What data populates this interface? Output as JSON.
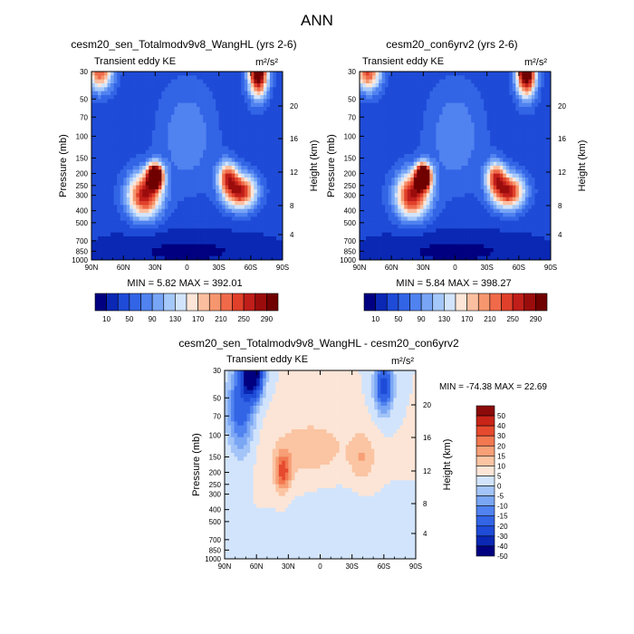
{
  "figure_title": "ANN",
  "chart_data": [
    {
      "type": "heatmap",
      "title": "cesm20_sen_Totalmodv9v8_WangHL (yrs 2-6)",
      "subtitle": "Transient eddy KE",
      "units": "m²/s²",
      "xlabel": "",
      "ylabel": "Pressure (mb)",
      "ylabel_right": "Height (km)",
      "x_ticks": [
        "90N",
        "60N",
        "30N",
        "0",
        "30S",
        "60S",
        "90S"
      ],
      "y_ticks": [
        "30",
        "50",
        "70",
        "100",
        "150",
        "200",
        "250",
        "300",
        "400",
        "500",
        "700",
        "850",
        "1000"
      ],
      "y_ticks_right": [
        "4",
        "8",
        "12",
        "16",
        "20"
      ],
      "ylim": [
        1000,
        30
      ],
      "stats": "MIN =  5.82  MAX = 392.01",
      "colorbar_labels": [
        "10",
        "50",
        "90",
        "130",
        "170",
        "210",
        "250",
        "290"
      ],
      "features": [
        {
          "lat": 30,
          "pressure": 200,
          "value": 392
        },
        {
          "lat": -50,
          "pressure": 270,
          "value": 300
        },
        {
          "lat": -65,
          "pressure": 30,
          "value": 290
        },
        {
          "lat": 80,
          "pressure": 30,
          "value": 180
        }
      ]
    },
    {
      "type": "heatmap",
      "title": "cesm20_con6yrv2 (yrs 2-6)",
      "subtitle": "Transient eddy KE",
      "units": "m²/s²",
      "xlabel": "",
      "ylabel": "Pressure (mb)",
      "ylabel_right": "Height (km)",
      "x_ticks": [
        "90N",
        "60N",
        "30N",
        "0",
        "30S",
        "60S",
        "90S"
      ],
      "y_ticks": [
        "30",
        "50",
        "70",
        "100",
        "150",
        "200",
        "250",
        "300",
        "400",
        "500",
        "700",
        "850",
        "1000"
      ],
      "y_ticks_right": [
        "4",
        "8",
        "12",
        "16",
        "20"
      ],
      "ylim": [
        1000,
        30
      ],
      "stats": "MIN =  5.84  MAX = 398.27",
      "colorbar_labels": [
        "10",
        "50",
        "90",
        "130",
        "170",
        "210",
        "250",
        "290"
      ],
      "features": [
        {
          "lat": 30,
          "pressure": 200,
          "value": 398
        },
        {
          "lat": -50,
          "pressure": 270,
          "value": 300
        },
        {
          "lat": -65,
          "pressure": 30,
          "value": 300
        },
        {
          "lat": 80,
          "pressure": 30,
          "value": 190
        }
      ]
    },
    {
      "type": "heatmap",
      "title": "cesm20_sen_Totalmodv9v8_WangHL - cesm20_con6yrv2",
      "subtitle": "Transient eddy KE",
      "units": "m²/s²",
      "xlabel": "",
      "ylabel": "Pressure (mb)",
      "ylabel_right": "Height (km)",
      "x_ticks": [
        "90N",
        "60N",
        "30N",
        "0",
        "30S",
        "60S",
        "90S"
      ],
      "y_ticks": [
        "30",
        "50",
        "70",
        "100",
        "150",
        "200",
        "250",
        "300",
        "400",
        "500",
        "700",
        "850",
        "1000"
      ],
      "y_ticks_right": [
        "4",
        "8",
        "12",
        "16",
        "20"
      ],
      "ylim": [
        1000,
        30
      ],
      "stats": "MIN = -74.38  MAX =  22.69",
      "colorbar_labels": [
        "50",
        "40",
        "30",
        "20",
        "15",
        "10",
        "5",
        "0",
        "-5",
        "-10",
        "-15",
        "-20",
        "-30",
        "-40",
        "-50"
      ],
      "features": [
        {
          "lat": 65,
          "pressure": 30,
          "value": -74
        },
        {
          "lat": 35,
          "pressure": 200,
          "value": 22
        },
        {
          "lat": -60,
          "pressure": 35,
          "value": -40
        }
      ]
    }
  ],
  "colors": {
    "abs_scale": [
      "#000080",
      "#0a28b4",
      "#1e4bd7",
      "#3264e6",
      "#5082f0",
      "#78a5f5",
      "#a5c8fa",
      "#d2e4fc",
      "#fde6d8",
      "#fbbfa0",
      "#f5966e",
      "#f06a4a",
      "#e0402a",
      "#c01e1a",
      "#9b0c0c",
      "#700000"
    ],
    "diff_scale": [
      "#000080",
      "#0a28b4",
      "#1e4bd7",
      "#3264e6",
      "#5082f0",
      "#7aa6f4",
      "#a3c4f8",
      "#d2e4fc",
      "#fce5d6",
      "#fbc4a2",
      "#f79f76",
      "#f27850",
      "#e64a2e",
      "#c82418",
      "#8c0a0a"
    ]
  }
}
